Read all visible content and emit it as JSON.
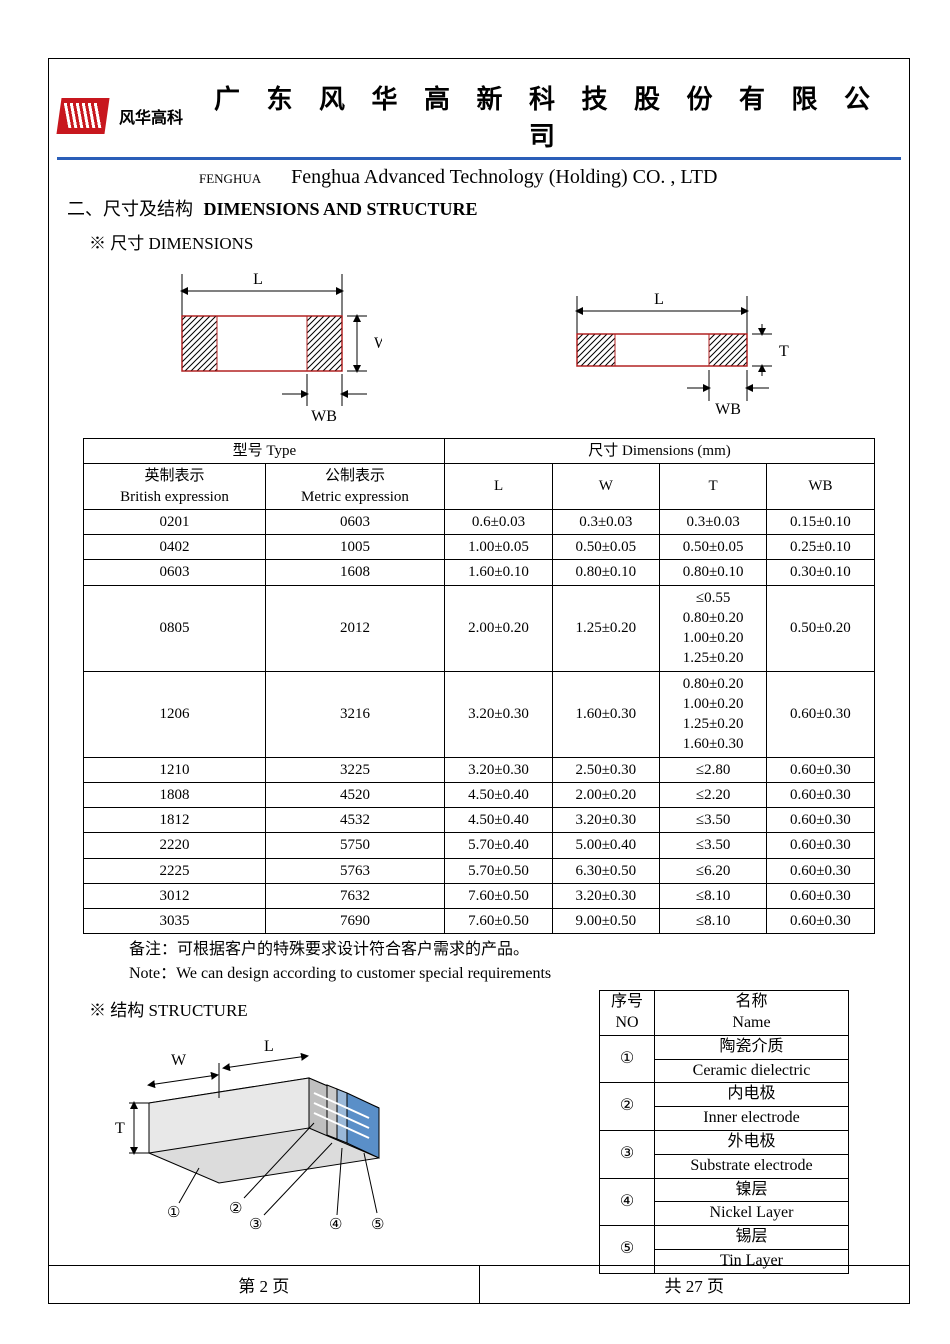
{
  "header": {
    "brand_cn": "风华高科",
    "company_cn": "广 东 风 华 高 新 科 技 股 份 有 限 公 司",
    "fenghua_small": "FENGHUA",
    "company_en": "Fenghua Advanced Technology (Holding) CO. , LTD",
    "logo_color": "#c8171e",
    "divider_color": "#2a5eb8"
  },
  "section": {
    "number_cn": "二、尺寸及结构",
    "title_en": "DIMENSIONS AND STRUCTURE",
    "dims_sub": "※ 尺寸 DIMENSIONS",
    "struct_sub": "※ 结构 STRUCTURE"
  },
  "diagram_labels": {
    "L": "L",
    "W": "W",
    "T": "T",
    "WB": "WB",
    "stroke": "#000000",
    "hatch_stroke": "#b22222",
    "fill": "#ffffff",
    "font_size": 16
  },
  "dim_table": {
    "header_type": "型号 Type",
    "header_dims": "尺寸    Dimensions    (mm)",
    "col_british_cn": "英制表示",
    "col_british_en": "British expression",
    "col_metric_cn": "公制表示",
    "col_metric_en": "Metric expression",
    "cols": [
      "L",
      "W",
      "T",
      "WB"
    ],
    "rows": [
      {
        "b": "0201",
        "m": "0603",
        "L": "0.6±0.03",
        "W": "0.3±0.03",
        "T": "0.3±0.03",
        "WB": "0.15±0.10"
      },
      {
        "b": "0402",
        "m": "1005",
        "L": "1.00±0.05",
        "W": "0.50±0.05",
        "T": "0.50±0.05",
        "WB": "0.25±0.10"
      },
      {
        "b": "0603",
        "m": "1608",
        "L": "1.60±0.10",
        "W": "0.80±0.10",
        "T": "0.80±0.10",
        "WB": "0.30±0.10"
      },
      {
        "b": "0805",
        "m": "2012",
        "L": "2.00±0.20",
        "W": "1.25±0.20",
        "T": "≤0.55\n0.80±0.20\n1.00±0.20\n1.25±0.20",
        "WB": "0.50±0.20"
      },
      {
        "b": "1206",
        "m": "3216",
        "L": "3.20±0.30",
        "W": "1.60±0.30",
        "T": "0.80±0.20\n1.00±0.20\n1.25±0.20\n1.60±0.30",
        "WB": "0.60±0.30"
      },
      {
        "b": "1210",
        "m": "3225",
        "L": "3.20±0.30",
        "W": "2.50±0.30",
        "T": "≤2.80",
        "WB": "0.60±0.30"
      },
      {
        "b": "1808",
        "m": "4520",
        "L": "4.50±0.40",
        "W": "2.00±0.20",
        "T": "≤2.20",
        "WB": "0.60±0.30"
      },
      {
        "b": "1812",
        "m": "4532",
        "L": "4.50±0.40",
        "W": "3.20±0.30",
        "T": "≤3.50",
        "WB": "0.60±0.30"
      },
      {
        "b": "2220",
        "m": "5750",
        "L": "5.70±0.40",
        "W": "5.00±0.40",
        "T": "≤3.50",
        "WB": "0.60±0.30"
      },
      {
        "b": "2225",
        "m": "5763",
        "L": "5.70±0.50",
        "W": "6.30±0.50",
        "T": "≤6.20",
        "WB": "0.60±0.30"
      },
      {
        "b": "3012",
        "m": "7632",
        "L": "7.60±0.50",
        "W": "3.20±0.30",
        "T": "≤8.10",
        "WB": "0.60±0.30"
      },
      {
        "b": "3035",
        "m": "7690",
        "L": "7.60±0.50",
        "W": "9.00±0.50",
        "T": "≤8.10",
        "WB": "0.60±0.30"
      }
    ],
    "border_color": "#000000",
    "font_size": 15
  },
  "notes": {
    "cn": "备注：可根据客户的特殊要求设计符合客户需求的产品。",
    "en": "Note：We can design according to customer special requirements"
  },
  "struct_diagram": {
    "labels": {
      "W": "W",
      "L": "L",
      "T": "T"
    },
    "body_fill": "#dcdcdc",
    "end_fill": "#5a8fc8",
    "edge": "#000000",
    "callouts": [
      "①",
      "②",
      "③",
      "④",
      "⑤"
    ]
  },
  "struct_table": {
    "head_no_cn": "序号",
    "head_no_en": "NO",
    "head_name_cn": "名称",
    "head_name_en": "Name",
    "rows": [
      {
        "no": "①",
        "cn": "陶瓷介质",
        "en": "Ceramic   dielectric"
      },
      {
        "no": "②",
        "cn": "内电极",
        "en": "Inner   electrode"
      },
      {
        "no": "③",
        "cn": "外电极",
        "en": "Substrate   electrode"
      },
      {
        "no": "④",
        "cn": "镍层",
        "en": "Nickel Layer"
      },
      {
        "no": "⑤",
        "cn": "锡层",
        "en": "Tin Layer"
      }
    ]
  },
  "footer": {
    "left": "第   2   页",
    "right": "共  27  页"
  }
}
